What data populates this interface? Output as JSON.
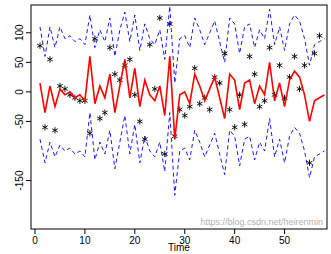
{
  "chart_data": {
    "type": "line",
    "x_label": "Time",
    "annotations": [
      "https://blog.csdn.net/heirenmin"
    ],
    "xlim": [
      -0.8,
      58.5
    ],
    "ylim": [
      -232,
      147
    ],
    "xticks": [
      0,
      10,
      20,
      30,
      40,
      50
    ],
    "yticks": [
      -150,
      -50,
      0,
      50,
      100
    ],
    "x": [
      1,
      2,
      3,
      4,
      5,
      6,
      7,
      8,
      9,
      10,
      11,
      12,
      13,
      14,
      15,
      16,
      17,
      18,
      19,
      20,
      21,
      22,
      23,
      24,
      25,
      26,
      27,
      28,
      29,
      30,
      31,
      32,
      33,
      34,
      35,
      36,
      37,
      38,
      39,
      40,
      41,
      42,
      43,
      44,
      45,
      46,
      47,
      48,
      49,
      50,
      51,
      52,
      53,
      54,
      55,
      56,
      57,
      58
    ],
    "series": [
      {
        "type": "scatter",
        "marker": "asterisk",
        "color": "#000000",
        "values": [
          78,
          -60,
          55,
          -65,
          10,
          5,
          -5,
          -10,
          -15,
          -15,
          -70,
          90,
          -45,
          -35,
          75,
          30,
          20,
          45,
          55,
          -5,
          -50,
          -80,
          80,
          5,
          125,
          -105,
          115,
          -75,
          -30,
          -40,
          -25,
          40,
          -20,
          -10,
          -30,
          25,
          15,
          65,
          -30,
          -60,
          -5,
          -55,
          60,
          30,
          -25,
          -15,
          75,
          -5,
          45,
          -10,
          25,
          60,
          5,
          45,
          -120,
          65,
          95,
          null
        ]
      },
      {
        "type": "line",
        "line_style": "solid",
        "color": "#ff0000",
        "values": [
          15,
          -35,
          10,
          -25,
          5,
          -5,
          0,
          -10,
          -5,
          -15,
          60,
          -20,
          10,
          -10,
          30,
          -35,
          10,
          55,
          -10,
          40,
          -25,
          20,
          -5,
          -15,
          10,
          -40,
          60,
          -80,
          -5,
          0,
          -20,
          30,
          10,
          -15,
          5,
          25,
          -10,
          -45,
          30,
          20,
          -30,
          15,
          20,
          -20,
          10,
          -5,
          50,
          -15,
          15,
          -25,
          20,
          35,
          25,
          -5,
          -50,
          -15,
          -10,
          -5
        ]
      },
      {
        "type": "line",
        "line_style": "dashed",
        "color": "#0000ff",
        "values": [
          110,
          60,
          110,
          75,
          110,
          90,
          95,
          85,
          90,
          80,
          130,
          75,
          105,
          85,
          125,
          60,
          105,
          135,
          85,
          130,
          70,
          115,
          90,
          80,
          105,
          55,
          145,
          15,
          90,
          95,
          75,
          125,
          105,
          80,
          100,
          120,
          85,
          50,
          125,
          115,
          65,
          110,
          115,
          75,
          105,
          90,
          140,
          80,
          110,
          70,
          115,
          130,
          120,
          90,
          45,
          80,
          85,
          90
        ]
      },
      {
        "type": "line",
        "line_style": "dashed",
        "color": "#0000ff",
        "values": [
          -80,
          -120,
          -85,
          -110,
          -90,
          -100,
          -95,
          -105,
          -100,
          -110,
          -35,
          -115,
          -85,
          -105,
          -65,
          -130,
          -85,
          -40,
          -105,
          -55,
          -120,
          -75,
          -100,
          -110,
          -85,
          -135,
          -35,
          -175,
          -100,
          -95,
          -115,
          -65,
          -85,
          -110,
          -90,
          -70,
          -105,
          -140,
          -65,
          -75,
          -125,
          -80,
          -75,
          -115,
          -85,
          -100,
          -45,
          -110,
          -80,
          -120,
          -75,
          -60,
          -70,
          -100,
          -145,
          -110,
          -105,
          -100
        ]
      }
    ]
  }
}
